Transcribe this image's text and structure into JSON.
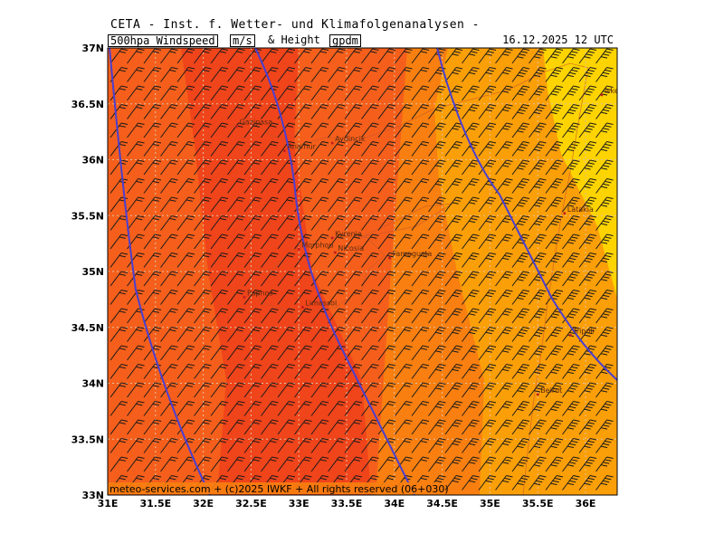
{
  "header": {
    "title": "CETA - Inst. f. Wetter- und Klimafolgenanalysen -"
  },
  "titlebar": {
    "param": "500hpa Windspeed",
    "unit1": "m/s",
    "mid": "& Height",
    "unit2": "gpdm",
    "datetime": "16.12.2025 12 UTC"
  },
  "map": {
    "lat_labels": [
      "37N",
      "36.5N",
      "36N",
      "35.5N",
      "35N",
      "34.5N",
      "34N",
      "33.5N",
      "33N"
    ],
    "lon_labels": [
      "31E",
      "31.5E",
      "32E",
      "32.5E",
      "33E",
      "33.5E",
      "34E",
      "34.5E",
      "35E",
      "35.5E",
      "36E"
    ],
    "cities": [
      {
        "name": "Anamur",
        "lon": 32.85,
        "lat": 36.08
      },
      {
        "name": "Gazipasa",
        "lon": 32.35,
        "lat": 36.3
      },
      {
        "name": "Aydincik",
        "lon": 33.35,
        "lat": 36.15
      },
      {
        "name": "Kyrenia",
        "lon": 33.35,
        "lat": 35.3
      },
      {
        "name": "Morphou",
        "lon": 33.0,
        "lat": 35.2
      },
      {
        "name": "Nicosia",
        "lon": 33.38,
        "lat": 35.17
      },
      {
        "name": "Famagusta",
        "lon": 33.95,
        "lat": 35.12
      },
      {
        "name": "Paphos",
        "lon": 32.43,
        "lat": 34.77
      },
      {
        "name": "Limassol",
        "lon": 33.04,
        "lat": 34.68
      },
      {
        "name": "Latakia",
        "lon": 35.78,
        "lat": 35.52
      },
      {
        "name": "Tripoli",
        "lon": 35.84,
        "lat": 34.43
      },
      {
        "name": "Beirut",
        "lon": 35.5,
        "lat": 33.9
      },
      {
        "name": "Iskenderun",
        "lon": 36.17,
        "lat": 36.58
      }
    ],
    "colors": {
      "strongest": "#f0441a",
      "strong": "#f55f1b",
      "medium": "#f87f10",
      "weak": "#fb9f08",
      "weakest": "#fdd400",
      "contour": "#4a3fd0"
    }
  },
  "footer": {
    "copyright": "meteo-services.com + (c)2025 IWKF + All rights reserved (06+030)"
  }
}
